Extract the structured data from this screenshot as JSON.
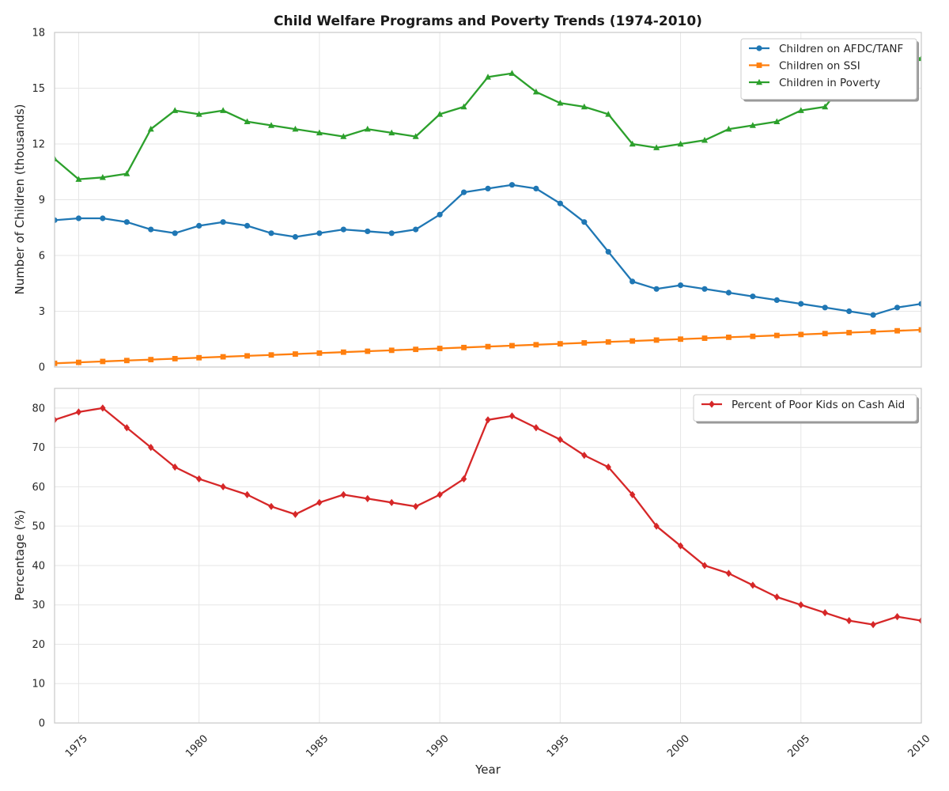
{
  "chart_data": {
    "title": "Child Welfare Programs and Poverty Trends (1974-2010)",
    "xlabel": "Year",
    "x_ticks": [
      1975,
      1980,
      1985,
      1990,
      1995,
      2000,
      2005,
      2010
    ],
    "years": [
      1974,
      1975,
      1976,
      1977,
      1978,
      1979,
      1980,
      1981,
      1982,
      1983,
      1984,
      1985,
      1986,
      1987,
      1988,
      1989,
      1990,
      1991,
      1992,
      1993,
      1994,
      1995,
      1996,
      1997,
      1998,
      1999,
      2000,
      2001,
      2002,
      2003,
      2004,
      2005,
      2006,
      2007,
      2008,
      2009,
      2010
    ],
    "xlim": [
      1974,
      2010
    ],
    "grid": true,
    "panels": [
      {
        "type": "line",
        "ylabel": "Number of Children (thousands)",
        "ylim": [
          0,
          18
        ],
        "y_ticks": [
          0,
          3,
          6,
          9,
          12,
          15,
          18
        ],
        "legend_position": "top-right",
        "series": [
          {
            "name": "Children on AFDC/TANF",
            "color": "#1f77b4",
            "marker": "circle",
            "values": [
              7.9,
              8.0,
              8.0,
              7.8,
              7.4,
              7.2,
              7.6,
              7.8,
              7.6,
              7.2,
              7.0,
              7.2,
              7.4,
              7.3,
              7.2,
              7.4,
              8.2,
              9.4,
              9.6,
              9.8,
              9.6,
              8.8,
              7.8,
              6.2,
              4.6,
              4.2,
              4.4,
              4.2,
              4.0,
              3.8,
              3.6,
              3.4,
              3.2,
              3.0,
              2.8,
              3.2,
              3.4
            ]
          },
          {
            "name": "Children on SSI",
            "color": "#ff7f0e",
            "marker": "square",
            "values": [
              0.2,
              0.25,
              0.3,
              0.35,
              0.4,
              0.45,
              0.5,
              0.55,
              0.6,
              0.65,
              0.7,
              0.75,
              0.8,
              0.85,
              0.9,
              0.95,
              1.0,
              1.05,
              1.1,
              1.15,
              1.2,
              1.25,
              1.3,
              1.35,
              1.4,
              1.45,
              1.5,
              1.55,
              1.6,
              1.65,
              1.7,
              1.75,
              1.8,
              1.85,
              1.9,
              1.95,
              2.0
            ]
          },
          {
            "name": "Children in Poverty",
            "color": "#2ca02c",
            "marker": "triangle",
            "values": [
              11.2,
              10.1,
              10.2,
              10.4,
              12.8,
              13.8,
              13.6,
              13.8,
              13.2,
              13.0,
              12.8,
              12.6,
              12.4,
              12.8,
              12.6,
              12.4,
              13.6,
              14.0,
              15.6,
              15.8,
              14.8,
              14.2,
              14.0,
              13.6,
              12.0,
              11.8,
              12.0,
              12.2,
              12.8,
              13.0,
              13.2,
              13.8,
              14.0,
              15.6,
              16.4,
              16.8,
              16.6
            ]
          }
        ]
      },
      {
        "type": "line",
        "ylabel": "Percentage (%)",
        "ylim": [
          0,
          85
        ],
        "y_ticks": [
          0,
          10,
          20,
          30,
          40,
          50,
          60,
          70,
          80
        ],
        "legend_position": "top-right",
        "series": [
          {
            "name": "Percent of Poor Kids on Cash Aid",
            "color": "#d62728",
            "marker": "diamond",
            "values": [
              77,
              79,
              80,
              75,
              70,
              65,
              62,
              60,
              58,
              55,
              53,
              56,
              58,
              57,
              56,
              55,
              58,
              62,
              77,
              78,
              75,
              72,
              68,
              65,
              58,
              50,
              45,
              40,
              38,
              35,
              32,
              30,
              28,
              26,
              25,
              27,
              26
            ]
          }
        ]
      }
    ]
  }
}
